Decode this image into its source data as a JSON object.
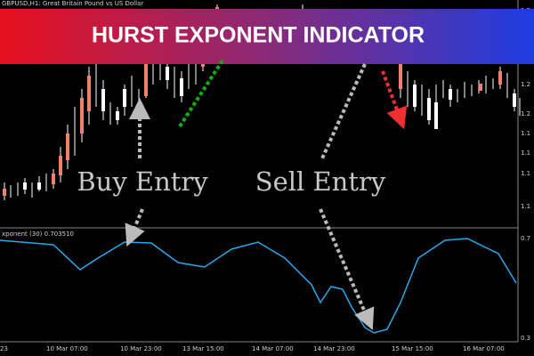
{
  "chart_header": "GBPUSD,H1:  Great Britain Pound vs US Dollar",
  "banner": {
    "title": "HURST EXPONENT INDICATOR"
  },
  "annotations": {
    "buy": "Buy Entry",
    "sell": "Sell Entry"
  },
  "indicator": {
    "label": "xponent (30) 0.703510",
    "axis": [
      "0.7",
      "0.3"
    ]
  },
  "price_axis": [
    "1.2",
    "1.2",
    "1.2",
    "1.2",
    "1.1",
    "1.1",
    "1.1",
    "1.1"
  ],
  "time_axis": [
    "23",
    "10 Mar 07:00",
    "10 Mar 23:00",
    "13 Mar 15:00",
    "14 Mar 07:00",
    "14 Mar 23:00",
    "15 Mar 15:00",
    "16 Mar 07:00"
  ]
}
